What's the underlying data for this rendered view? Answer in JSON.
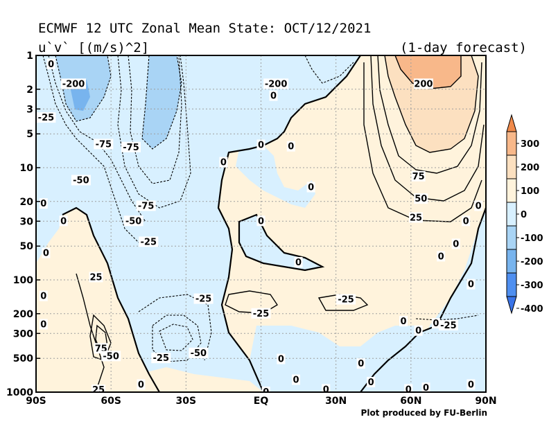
{
  "header": {
    "title": "ECMWF 12 UTC Zonal Mean State: OCT/12/2021",
    "variable": "u`v` [(m/s)^2]",
    "forecast": "(1-day forecast)"
  },
  "footer": {
    "credit": "Plot produced by FU-Berlin"
  },
  "chart_data": {
    "type": "contour",
    "x_ticks": [
      "90S",
      "60S",
      "30S",
      "EQ",
      "30N",
      "60N",
      "90N"
    ],
    "x_values": [
      -90,
      -60,
      -30,
      0,
      30,
      60,
      90
    ],
    "y_ticks": [
      "1",
      "2",
      "3",
      "5",
      "10",
      "20",
      "30",
      "50",
      "100",
      "200",
      "300",
      "500",
      "1000"
    ],
    "y_values": [
      1,
      2,
      3,
      5,
      10,
      20,
      30,
      50,
      100,
      200,
      300,
      500,
      1000
    ],
    "y_scale": "log",
    "y_inverted": true,
    "xlim": [
      -90,
      90
    ],
    "ylim": [
      1000,
      1
    ],
    "grid": true,
    "colorbar": {
      "levels": [
        "300",
        "200",
        "100",
        "0",
        "-100",
        "-200",
        "-300",
        "-400"
      ],
      "colors": [
        "#f08a4b",
        "#f8b88a",
        "#fce0c0",
        "#fff3dc",
        "#d8f0ff",
        "#a9d4f5",
        "#78b4ee",
        "#4f8ff0",
        "#3a74e8"
      ]
    },
    "contour_labels": [
      {
        "text": "0",
        "lat": -84,
        "p": 1.2
      },
      {
        "text": "-200",
        "lat": -75,
        "p": 1.8
      },
      {
        "text": "-25",
        "lat": -86,
        "p": 3.6
      },
      {
        "text": "-75",
        "lat": -63,
        "p": 6.2
      },
      {
        "text": "-75",
        "lat": -52,
        "p": 6.6
      },
      {
        "text": "-50",
        "lat": -72,
        "p": 13
      },
      {
        "text": "0",
        "lat": -87,
        "p": 21
      },
      {
        "text": "-75",
        "lat": -46,
        "p": 22
      },
      {
        "text": "-50",
        "lat": -51,
        "p": 30
      },
      {
        "text": "0",
        "lat": -79,
        "p": 30
      },
      {
        "text": "-25",
        "lat": -45,
        "p": 46
      },
      {
        "text": "0",
        "lat": -86,
        "p": 58
      },
      {
        "text": "25",
        "lat": -66,
        "p": 95
      },
      {
        "text": "0",
        "lat": -87,
        "p": 140
      },
      {
        "text": "0",
        "lat": -87,
        "p": 250
      },
      {
        "text": "-25",
        "lat": -23,
        "p": 148
      },
      {
        "text": "75",
        "lat": -64,
        "p": 410
      },
      {
        "text": "-50",
        "lat": -60,
        "p": 480
      },
      {
        "text": "-50",
        "lat": -25,
        "p": 450
      },
      {
        "text": "-25",
        "lat": -40,
        "p": 500
      },
      {
        "text": "25",
        "lat": -65,
        "p": 960
      },
      {
        "text": "0",
        "lat": -48,
        "p": 860
      },
      {
        "text": "-200",
        "lat": 6,
        "p": 1.8
      },
      {
        "text": "0",
        "lat": 5,
        "p": 2.3
      },
      {
        "text": "0",
        "lat": 12,
        "p": 6.5
      },
      {
        "text": "0",
        "lat": 0,
        "p": 6.3
      },
      {
        "text": "0",
        "lat": -15,
        "p": 9
      },
      {
        "text": "0",
        "lat": 20,
        "p": 15
      },
      {
        "text": "0",
        "lat": 0,
        "p": 30
      },
      {
        "text": "0",
        "lat": 15,
        "p": 70
      },
      {
        "text": "-25",
        "lat": 0,
        "p": 200
      },
      {
        "text": "-25",
        "lat": 34,
        "p": 150
      },
      {
        "text": "0",
        "lat": 8,
        "p": 510
      },
      {
        "text": "0",
        "lat": 40,
        "p": 560
      },
      {
        "text": "0",
        "lat": 14,
        "p": 780
      },
      {
        "text": "0",
        "lat": 26,
        "p": 950
      },
      {
        "text": "0",
        "lat": 2,
        "p": 1000
      },
      {
        "text": "0",
        "lat": 44,
        "p": 820
      },
      {
        "text": "0",
        "lat": 59,
        "p": 950
      },
      {
        "text": "0",
        "lat": 66,
        "p": 920
      },
      {
        "text": "0",
        "lat": 57,
        "p": 235
      },
      {
        "text": "0",
        "lat": 63,
        "p": 285
      },
      {
        "text": "0",
        "lat": 70,
        "p": 245
      },
      {
        "text": "-25",
        "lat": 75,
        "p": 255
      },
      {
        "text": "0",
        "lat": 72,
        "p": 62
      },
      {
        "text": "0",
        "lat": 78,
        "p": 48
      },
      {
        "text": "0",
        "lat": 82,
        "p": 30
      },
      {
        "text": "0",
        "lat": 87,
        "p": 22
      },
      {
        "text": "0",
        "lat": 84,
        "p": 110
      },
      {
        "text": "0",
        "lat": 84,
        "p": 860
      },
      {
        "text": "200",
        "lat": 65,
        "p": 1.8
      },
      {
        "text": "75",
        "lat": 63,
        "p": 12
      },
      {
        "text": "50",
        "lat": 64,
        "p": 19
      },
      {
        "text": "25",
        "lat": 62,
        "p": 28
      }
    ]
  }
}
